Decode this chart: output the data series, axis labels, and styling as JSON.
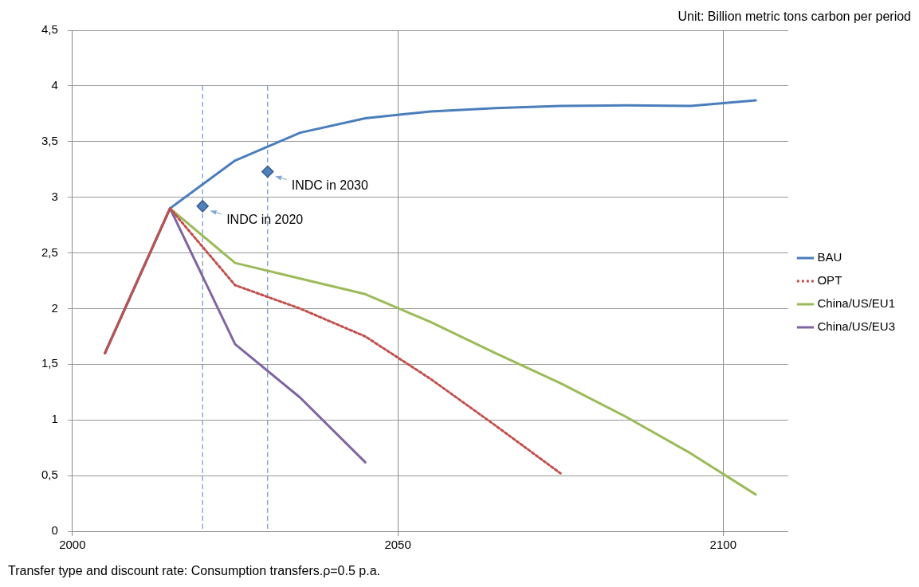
{
  "chart_data": {
    "type": "line",
    "xlim": [
      2000,
      2110
    ],
    "xticks": [
      2000,
      2050,
      2100
    ],
    "ylim": [
      0,
      4.5
    ],
    "yticks": [
      0,
      {
        "value": 0.5,
        "label": "0,5"
      },
      1,
      {
        "value": 1.5,
        "label": "1,5"
      },
      2,
      {
        "value": 2.5,
        "label": "2,5"
      },
      3,
      {
        "value": 3.5,
        "label": "3,5"
      },
      4,
      {
        "value": 4.5,
        "label": "4,5"
      }
    ],
    "x": [
      2005,
      2015,
      2025,
      2035,
      2045,
      2055,
      2065,
      2075,
      2085,
      2095,
      2105
    ],
    "grid": true,
    "legend": "right",
    "marker": "none",
    "series": [
      {
        "name": "BAU",
        "color": "#4a7ebb",
        "line_style": "solid",
        "values": [
          1.6,
          2.9,
          3.33,
          3.58,
          3.71,
          3.77,
          3.8,
          3.82,
          3.825,
          3.82,
          3.87
        ]
      },
      {
        "name": "OPT",
        "color": "#c0504d",
        "line_style": "dotted",
        "values": [
          1.6,
          2.9,
          2.21,
          2.0,
          1.75,
          1.37,
          0.95,
          0.52,
          null,
          null,
          null
        ]
      },
      {
        "name": "China/US/EU1",
        "color": "#9bbb59",
        "line_style": "solid",
        "values": [
          1.6,
          2.9,
          2.41,
          2.27,
          2.13,
          1.88,
          1.6,
          1.33,
          1.03,
          0.7,
          0.33
        ]
      },
      {
        "name": "China/US/EU3",
        "color": "#8064a2",
        "line_style": "solid",
        "values": [
          1.6,
          2.9,
          1.68,
          1.2,
          0.62,
          null,
          null,
          null,
          null,
          null,
          null
        ]
      },
      {
        "type": "scatter",
        "marker": "diamond",
        "color": "#4f81bd",
        "x": [
          2020,
          2030
        ],
        "values": [
          2.92,
          3.23
        ]
      }
    ],
    "ref_lines": [
      {
        "axis": "x",
        "value": 2020,
        "color": "#4f81bd",
        "line_style": "dashed"
      },
      {
        "axis": "x",
        "value": 2030,
        "color": "#4f81bd",
        "line_style": "dashed"
      }
    ],
    "annotations": [
      "Unit: Billion metric tons carbon per period",
      {
        "text": "INDC in 2020",
        "x": 2020,
        "y": 2.92
      },
      {
        "text": "INDC in 2030",
        "x": 2030,
        "y": 3.23
      },
      "Transfer type and discount rate: Consumption transfers.ρ=0.5 p.a."
    ]
  }
}
